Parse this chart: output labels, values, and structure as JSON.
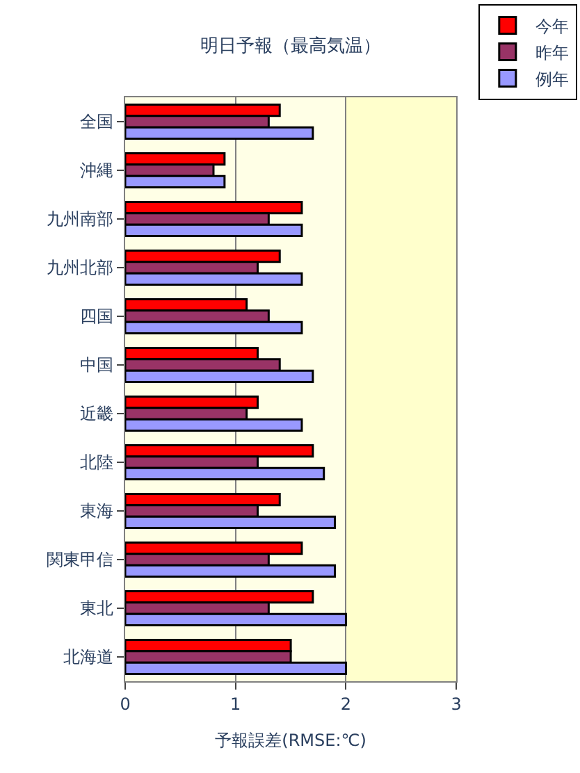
{
  "chart_data": {
    "type": "bar",
    "orientation": "horizontal",
    "title": "明日予報（最高気温）",
    "xlabel": "予報誤差(RMSE:℃)",
    "categories": [
      "全国",
      "沖縄",
      "九州南部",
      "九州北部",
      "四国",
      "中国",
      "近畿",
      "北陸",
      "東海",
      "関東甲信",
      "東北",
      "北海道"
    ],
    "series": [
      {
        "name": "今年",
        "color": "#ff0000",
        "values": [
          1.4,
          0.9,
          1.6,
          1.4,
          1.1,
          1.2,
          1.2,
          1.7,
          1.4,
          1.6,
          1.7,
          1.5
        ]
      },
      {
        "name": "昨年",
        "color": "#993366",
        "values": [
          1.3,
          0.8,
          1.3,
          1.2,
          1.3,
          1.4,
          1.1,
          1.2,
          1.2,
          1.3,
          1.3,
          1.5
        ]
      },
      {
        "name": "例年",
        "color": "#9999ff",
        "values": [
          1.7,
          0.9,
          1.6,
          1.6,
          1.6,
          1.7,
          1.6,
          1.8,
          1.9,
          1.9,
          2.0,
          2.0
        ]
      }
    ],
    "xlim": [
      0,
      3
    ],
    "xticks": [
      0,
      1,
      2,
      3
    ],
    "grid": "x",
    "legend": "top right",
    "bands": [
      {
        "axis": "x",
        "from": 2,
        "to": 3,
        "color": "#ffffcc"
      }
    ]
  }
}
